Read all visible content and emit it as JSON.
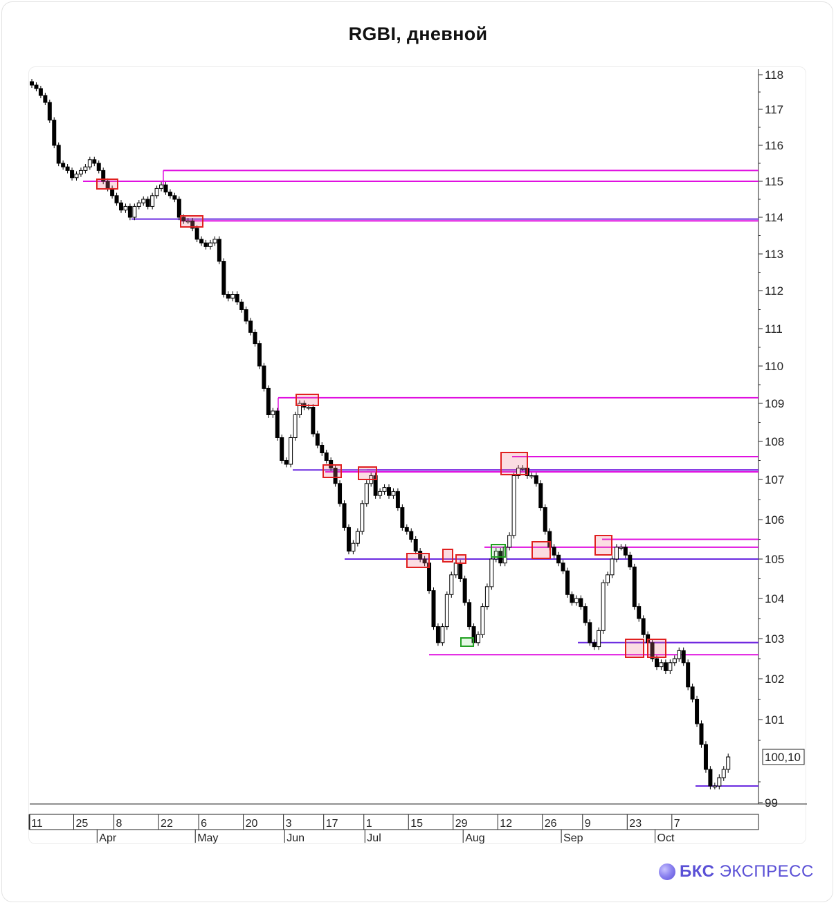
{
  "page": {
    "title": "RGBI, дневной",
    "brand_bold": "БКС",
    "brand_rest": "ЭКСПРЕСС"
  },
  "chart_data": {
    "type": "candlestick",
    "title": "RGBI, дневной",
    "ylim": [
      99,
      118.3
    ],
    "y_ticks": [
      99,
      101,
      102,
      103,
      104,
      105,
      106,
      107,
      108,
      109,
      110,
      111,
      112,
      113,
      114,
      115,
      116,
      117,
      118
    ],
    "y_tick_labels": [
      "99",
      "101",
      "102",
      "103",
      "104",
      "105",
      "106",
      "107",
      "108",
      "109",
      "110",
      "111",
      "112",
      "113",
      "114",
      "115",
      "116",
      "117",
      "118"
    ],
    "last_price_label": "100,10",
    "last_price": 100.1,
    "x_day_ticks": [
      {
        "label": "11",
        "i": 0
      },
      {
        "label": "25",
        "i": 10
      },
      {
        "label": "8",
        "i": 19
      },
      {
        "label": "22",
        "i": 29
      },
      {
        "label": "6",
        "i": 38
      },
      {
        "label": "20",
        "i": 48
      },
      {
        "label": "3",
        "i": 57
      },
      {
        "label": "17",
        "i": 66
      },
      {
        "label": "1",
        "i": 75
      },
      {
        "label": "15",
        "i": 85
      },
      {
        "label": "29",
        "i": 95
      },
      {
        "label": "12",
        "i": 105
      },
      {
        "label": "26",
        "i": 115
      },
      {
        "label": "9",
        "i": 124
      },
      {
        "label": "23",
        "i": 134
      },
      {
        "label": "7",
        "i": 144
      }
    ],
    "x_month_ticks": [
      {
        "label": "Apr",
        "i": 14
      },
      {
        "label": "May",
        "i": 36
      },
      {
        "label": "Jun",
        "i": 56
      },
      {
        "label": "Jul",
        "i": 74
      },
      {
        "label": "Aug",
        "i": 96
      },
      {
        "label": "Sep",
        "i": 118
      },
      {
        "label": "Oct",
        "i": 139
      }
    ],
    "closes": [
      117.7,
      117.6,
      117.4,
      117.2,
      116.7,
      116.0,
      115.5,
      115.4,
      115.3,
      115.1,
      115.2,
      115.3,
      115.4,
      115.6,
      115.5,
      115.3,
      115.0,
      114.8,
      114.6,
      114.4,
      114.2,
      114.3,
      114.0,
      114.3,
      114.4,
      114.5,
      114.3,
      114.6,
      114.8,
      114.9,
      114.7,
      114.6,
      114.5,
      114.0,
      113.9,
      113.9,
      113.7,
      113.4,
      113.3,
      113.2,
      113.3,
      113.4,
      112.8,
      111.9,
      111.8,
      111.9,
      111.7,
      111.5,
      111.2,
      110.9,
      110.6,
      110.0,
      109.4,
      108.7,
      108.8,
      108.1,
      107.5,
      107.4,
      108.1,
      108.7,
      109.0,
      108.9,
      108.9,
      108.2,
      107.9,
      107.7,
      107.5,
      107.3,
      106.9,
      106.4,
      105.8,
      105.2,
      105.4,
      105.7,
      106.4,
      106.9,
      107.1,
      106.6,
      106.7,
      106.8,
      106.6,
      106.7,
      106.3,
      105.8,
      105.7,
      105.5,
      105.2,
      105.0,
      104.9,
      104.2,
      103.3,
      102.9,
      103.3,
      104.1,
      104.6,
      104.9,
      104.5,
      103.9,
      103.3,
      102.9,
      103.1,
      103.8,
      104.3,
      105.0,
      105.2,
      104.9,
      105.3,
      105.6,
      107.1,
      107.3,
      107.3,
      107.1,
      107.1,
      106.9,
      106.3,
      105.7,
      105.3,
      105.1,
      104.9,
      104.7,
      104.1,
      103.9,
      104.0,
      103.8,
      103.4,
      102.9,
      102.8,
      103.2,
      104.4,
      104.6,
      105.0,
      105.3,
      105.3,
      105.1,
      104.8,
      103.8,
      103.5,
      103.1,
      102.9,
      102.5,
      102.3,
      102.4,
      102.2,
      102.4,
      102.5,
      102.7,
      102.4,
      101.8,
      101.5,
      100.9,
      100.4,
      99.8,
      99.4,
      99.4,
      99.6,
      99.8,
      100.1
    ],
    "levels": [
      {
        "kind": "resistance",
        "value": 115.3
      },
      {
        "kind": "resistance",
        "value": 115.0
      },
      {
        "kind": "resistance",
        "value": 113.9
      },
      {
        "kind": "resistance",
        "value": 109.15
      },
      {
        "kind": "resistance",
        "value": 107.6
      },
      {
        "kind": "resistance",
        "value": 107.25
      },
      {
        "kind": "resistance",
        "value": 107.2
      },
      {
        "kind": "resistance",
        "value": 105.5
      },
      {
        "kind": "resistance",
        "value": 105.3
      },
      {
        "kind": "resistance",
        "value": 102.9
      },
      {
        "kind": "resistance",
        "value": 102.6
      },
      {
        "kind": "support",
        "value": 113.95
      },
      {
        "kind": "support",
        "value": 107.25
      },
      {
        "kind": "support",
        "value": 105.0
      },
      {
        "kind": "support",
        "value": 102.9
      },
      {
        "kind": "support",
        "value": 99.4
      }
    ],
    "colors": {
      "resistance": "#e010e0",
      "support": "#6a2ae0",
      "bear_candle": "#000000",
      "bull_candle": "#ffffff",
      "box_red": "#e02020",
      "box_green": "#20a020",
      "brand": "#5a50d6"
    }
  }
}
